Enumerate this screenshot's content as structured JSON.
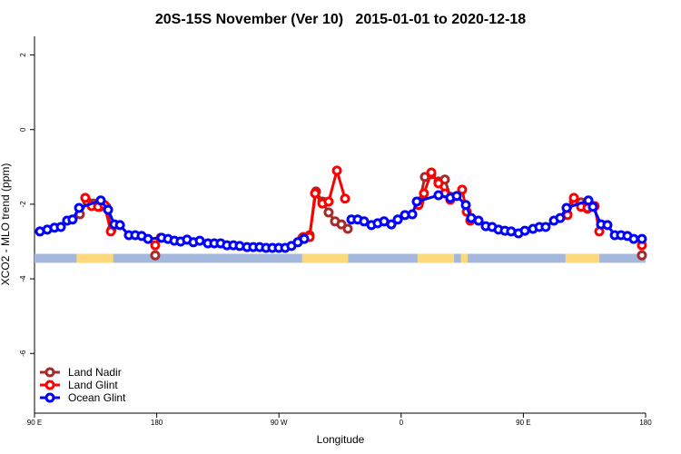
{
  "chart_data": {
    "type": "line",
    "title": "20S-15S November (Ver 10)   2015-01-01 to 2020-12-18",
    "x_label": "Longitude",
    "y_label": "XCO2 - MLO trend (ppm)",
    "xlim": [
      90,
      540
    ],
    "ylim": [
      -7.6,
      2.5
    ],
    "xticks": [
      {
        "value": 90,
        "label": "90 E"
      },
      180,
      {
        "value": 270,
        "label": "90 W"
      },
      {
        "value": 360,
        "label": "0"
      },
      {
        "value": 450,
        "label": "90 E"
      },
      {
        "value": 540,
        "label": "180"
      }
    ],
    "yticks": [
      2,
      0,
      -2,
      -4,
      -6
    ],
    "legend": "bottom-left",
    "surface_strip": {
      "y": [
        -3.57,
        -3.33
      ],
      "ocean_color": "#a3b8dc",
      "land_color": "#fcd97e",
      "land": [
        [
          121,
          148
        ],
        [
          287,
          321
        ],
        [
          372,
          399
        ],
        [
          404,
          409
        ],
        [
          481,
          506
        ]
      ]
    },
    "series": [
      {
        "name": "Land Nadir",
        "color": "#a52a2a",
        "x": [
          123.4,
          128.8,
          133.5,
          138.2,
          142.8,
          146.8,
          160,
          178.9,
          230,
          287.3,
          292.6,
          297.3,
          302,
          306.6,
          311.3,
          316,
          320.7,
          350,
          373.5,
          377.5,
          382.2,
          387.5,
          392.2,
          396.2,
          440,
          482.5,
          487.2,
          492.5,
          497.2,
          501.9,
          520,
          537.3
        ],
        "values": [
          -2.27,
          -1.93,
          -1.98,
          -2.07,
          -2.07,
          -2.68,
          null,
          -3.37,
          null,
          -2.9,
          -2.83,
          -1.66,
          -1.93,
          -2.22,
          -2.46,
          -2.54,
          -2.66,
          null,
          -1.93,
          -1.27,
          -1.2,
          -1.39,
          -1.34,
          -1.8,
          null,
          -2.27,
          -1.93,
          -1.95,
          -2.12,
          -2.05,
          null,
          -3.37
        ]
      },
      {
        "name": "Land Glint",
        "color": "#ff0000",
        "x": [
          127.4,
          132.1,
          136.8,
          141.5,
          146.2,
          160,
          178.9,
          182.9,
          230,
          288,
          292.6,
          296.6,
          302,
          306.6,
          312.7,
          318.7,
          350,
          372.8,
          376.8,
          382.2,
          387.5,
          392.2,
          396.2,
          404.9,
          408.3,
          410.9,
          440,
          482.5,
          487.2,
          492.5,
          497.2,
          502.5,
          505.9,
          520,
          537.3
        ],
        "values": [
          -1.83,
          -2.05,
          -2.07,
          -2.02,
          -2.73,
          null,
          -3.1,
          -2.9,
          null,
          -2.88,
          -2.88,
          -1.71,
          -1.98,
          -1.93,
          -1.1,
          -1.85,
          null,
          -2.02,
          -1.71,
          -1.15,
          -1.44,
          -1.71,
          -1.88,
          -1.61,
          -2.2,
          -2.44,
          null,
          -2.29,
          -1.83,
          -2.07,
          -2.1,
          -2.05,
          -2.73,
          null,
          -3.1
        ]
      },
      {
        "name": "Ocean Glint",
        "color": "#0000ff",
        "x": [
          94,
          99.4,
          104.7,
          109.4,
          114,
          118,
          122.8,
          138.8,
          144.2,
          148.8,
          152.9,
          159.5,
          164.2,
          168.9,
          173.6,
          183.6,
          188.3,
          193,
          197.6,
          202.3,
          207,
          211.7,
          217.7,
          222.4,
          227.1,
          231.7,
          236.4,
          241.1,
          246.5,
          251.1,
          255.8,
          260.5,
          265.2,
          269.9,
          274.6,
          279.2,
          283.9,
          288.6,
          305,
          323.4,
          328,
          332.7,
          338.1,
          342.7,
          347.4,
          352.8,
          357.5,
          362.8,
          368.2,
          371.5,
          387.5,
          396.2,
          400.9,
          407.6,
          411.6,
          417,
          422.3,
          427,
          431.7,
          436.4,
          441,
          446.4,
          451.1,
          457.1,
          461.8,
          466.4,
          472.5,
          477.1,
          481.8,
          497.9,
          501.2,
          507.2,
          511.9,
          517.3,
          521.9,
          526.6,
          531.3,
          537.3
        ],
        "values": [
          -2.73,
          -2.68,
          -2.63,
          -2.61,
          -2.44,
          -2.41,
          -2.1,
          -1.9,
          -2.15,
          -2.54,
          -2.56,
          -2.83,
          -2.83,
          -2.85,
          -2.93,
          -2.9,
          -2.93,
          -2.98,
          -3.0,
          -2.95,
          -3.02,
          -2.98,
          -3.05,
          -3.05,
          -3.05,
          -3.1,
          -3.1,
          -3.12,
          -3.15,
          -3.15,
          -3.15,
          -3.17,
          -3.17,
          -3.17,
          -3.17,
          -3.12,
          -3.02,
          -2.93,
          null,
          -2.41,
          -2.41,
          -2.46,
          -2.56,
          -2.51,
          -2.46,
          -2.54,
          -2.41,
          -2.29,
          -2.27,
          -1.93,
          -1.76,
          -1.83,
          -1.78,
          -2.02,
          -2.37,
          -2.44,
          -2.59,
          -2.61,
          -2.68,
          -2.71,
          -2.73,
          -2.78,
          -2.71,
          -2.66,
          -2.61,
          -2.61,
          -2.44,
          -2.37,
          -2.1,
          -1.9,
          -2.07,
          -2.54,
          -2.56,
          -2.83,
          -2.83,
          -2.85,
          -2.93,
          -2.93
        ]
      }
    ]
  }
}
